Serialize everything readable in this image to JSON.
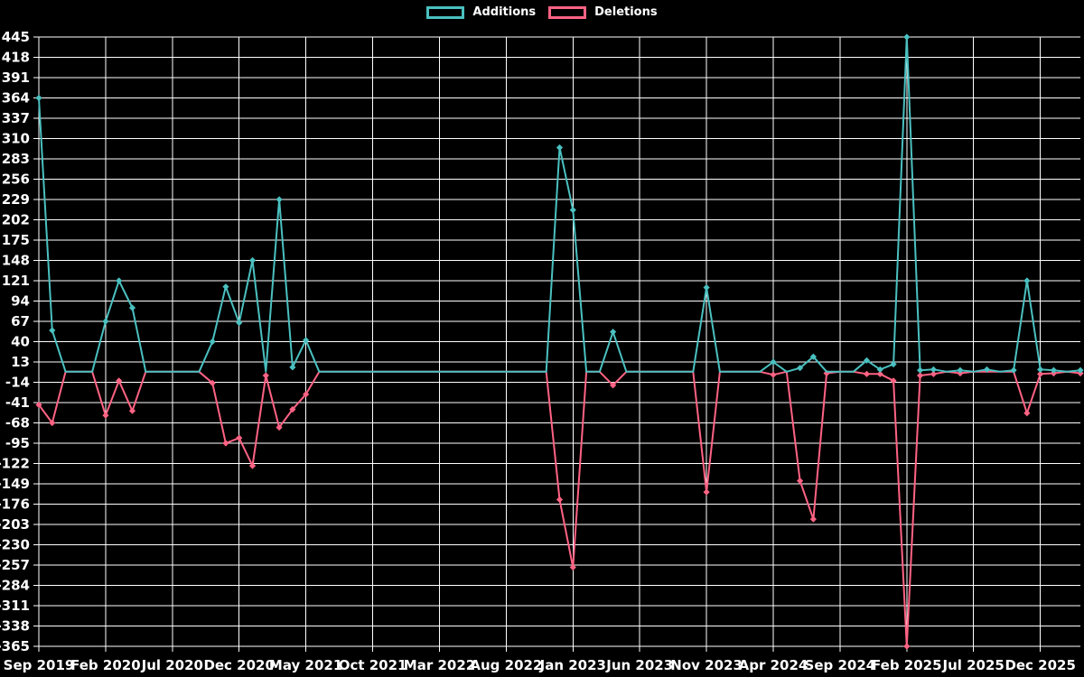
{
  "chart": {
    "background": "#000000",
    "grid_color": "#ffffff",
    "text_color": "#ffffff",
    "axis_color": "#ffffff"
  },
  "chart_data": {
    "type": "line",
    "title": "",
    "xlabel": "",
    "ylabel": "",
    "grid": true,
    "legend_position": "top",
    "marker": "diamond",
    "ylim": [
      -365,
      445
    ],
    "ytick_step": 27,
    "yticks": [
      445,
      418,
      391,
      364,
      337,
      310,
      283,
      256,
      229,
      202,
      175,
      148,
      121,
      94,
      67,
      40,
      13,
      -14,
      -41,
      -68,
      -95,
      -122,
      -149,
      -176,
      -203,
      -230,
      -257,
      -284,
      -311,
      -338,
      -365
    ],
    "x_tick_labels": [
      "Sep 2019",
      "Feb 2020",
      "Jul 2020",
      "Dec 2020",
      "May 2021",
      "Oct 2021",
      "Mar 2022",
      "Aug 2022",
      "Jan 2023",
      "Jun 2023",
      "Nov 2023",
      "Apr 2024",
      "Sep 2024",
      "Feb 2025",
      "Jul 2025",
      "Dec 2025"
    ],
    "x_tick_every": 5,
    "months": [
      "Sep 2019",
      "Oct 2019",
      "Nov 2019",
      "Dec 2019",
      "Jan 2020",
      "Feb 2020",
      "Mar 2020",
      "Apr 2020",
      "May 2020",
      "Jun 2020",
      "Jul 2020",
      "Aug 2020",
      "Sep 2020",
      "Oct 2020",
      "Nov 2020",
      "Dec 2020",
      "Jan 2021",
      "Feb 2021",
      "Mar 2021",
      "Apr 2021",
      "May 2021",
      "Jun 2021",
      "Jul 2021",
      "Aug 2021",
      "Sep 2021",
      "Oct 2021",
      "Nov 2021",
      "Dec 2021",
      "Jan 2022",
      "Feb 2022",
      "Mar 2022",
      "Apr 2022",
      "May 2022",
      "Jun 2022",
      "Jul 2022",
      "Aug 2022",
      "Sep 2022",
      "Oct 2022",
      "Nov 2022",
      "Dec 2022",
      "Jan 2023",
      "Feb 2023",
      "Mar 2023",
      "Apr 2023",
      "May 2023",
      "Jun 2023",
      "Jul 2023",
      "Aug 2023",
      "Sep 2023",
      "Oct 2023",
      "Nov 2023",
      "Dec 2023",
      "Jan 2024",
      "Feb 2024",
      "Mar 2024",
      "Apr 2024",
      "May 2024",
      "Jun 2024",
      "Jul 2024",
      "Aug 2024",
      "Sep 2024",
      "Oct 2024",
      "Nov 2024",
      "Dec 2024",
      "Jan 2025",
      "Feb 2025",
      "Mar 2025",
      "Apr 2025",
      "May 2025",
      "Jun 2025",
      "Jul 2025",
      "Aug 2025",
      "Sep 2025",
      "Oct 2025",
      "Nov 2025",
      "Dec 2025",
      "Jan 2026",
      "Feb 2026",
      "Mar 2026"
    ],
    "series": [
      {
        "name": "Additions",
        "color": "#4bc0c0",
        "values": [
          364,
          55,
          0,
          0,
          0,
          67,
          121,
          85,
          0,
          0,
          0,
          0,
          0,
          40,
          113,
          65,
          148,
          0,
          229,
          6,
          42,
          0,
          0,
          0,
          0,
          0,
          0,
          0,
          0,
          0,
          0,
          0,
          0,
          0,
          0,
          0,
          0,
          0,
          0,
          298,
          215,
          0,
          0,
          53,
          0,
          0,
          0,
          0,
          0,
          0,
          112,
          0,
          0,
          0,
          0,
          13,
          0,
          5,
          20,
          0,
          0,
          0,
          15,
          3,
          10,
          445,
          2,
          3,
          0,
          2,
          0,
          3,
          0,
          2,
          121,
          3,
          2,
          0,
          2
        ]
      },
      {
        "name": "Deletions",
        "color": "#ff6384",
        "values": [
          -44,
          -68,
          0,
          0,
          0,
          -58,
          -12,
          -52,
          0,
          0,
          0,
          0,
          0,
          -15,
          -95,
          -88,
          -125,
          -5,
          -74,
          -50,
          -30,
          0,
          0,
          0,
          0,
          0,
          0,
          0,
          0,
          0,
          0,
          0,
          0,
          0,
          0,
          0,
          0,
          0,
          0,
          -170,
          -260,
          0,
          0,
          -18,
          0,
          0,
          0,
          0,
          0,
          0,
          -160,
          0,
          0,
          0,
          0,
          -4,
          0,
          -145,
          -196,
          -2,
          0,
          0,
          -3,
          -3,
          -12,
          -365,
          -5,
          -3,
          0,
          -2,
          0,
          0,
          0,
          0,
          -55,
          -3,
          -2,
          0,
          -2
        ]
      }
    ]
  }
}
